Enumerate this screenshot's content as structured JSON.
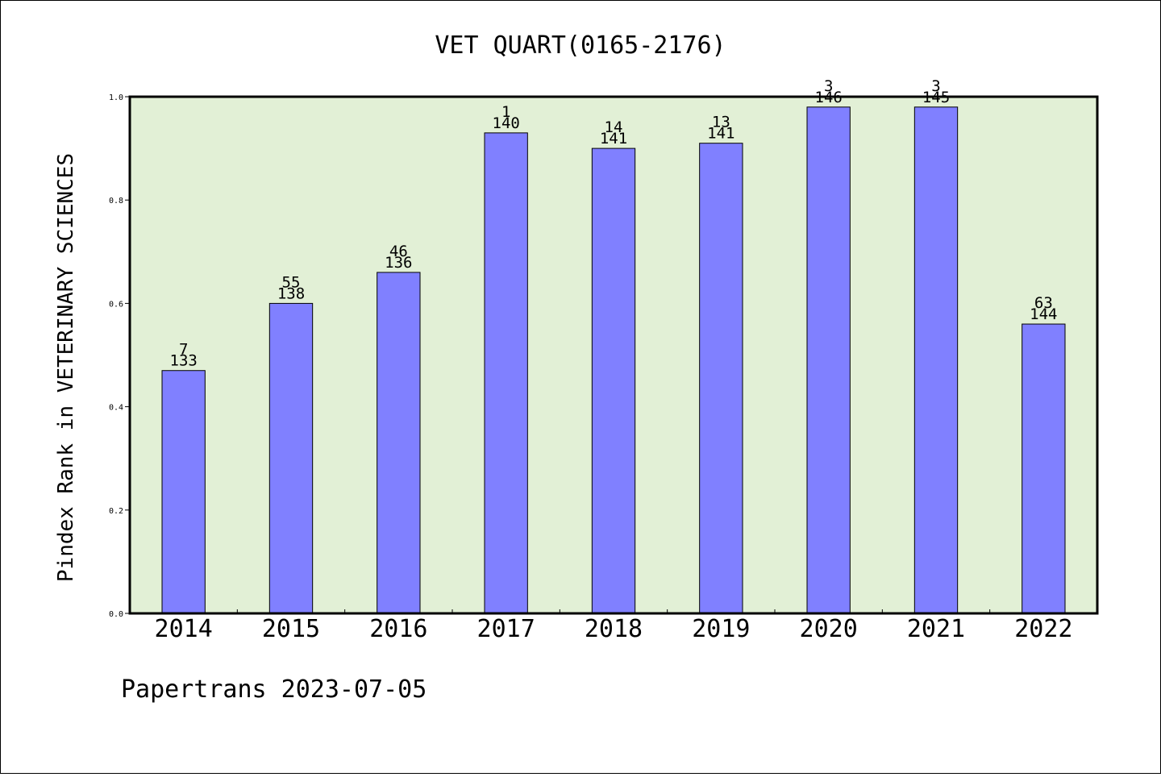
{
  "chart_data": {
    "type": "bar",
    "title": "VET QUART(0165-2176)",
    "xlabel": "",
    "ylabel": "Pindex Rank in VETERINARY SCIENCES",
    "ylim": [
      0,
      1.0
    ],
    "yticks": [
      "0.0",
      "0.2",
      "0.4",
      "0.6",
      "0.8",
      "1.0"
    ],
    "categories": [
      "2014",
      "2015",
      "2016",
      "2017",
      "2018",
      "2019",
      "2020",
      "2021",
      "2022"
    ],
    "values": [
      0.47,
      0.6,
      0.66,
      0.93,
      0.9,
      0.91,
      0.98,
      0.98,
      0.56
    ],
    "rank_labels": [
      "7",
      "55",
      "46",
      "1",
      "14",
      "13",
      "3",
      "3",
      "63"
    ],
    "total_labels": [
      "133",
      "138",
      "136",
      "140",
      "141",
      "141",
      "146",
      "145",
      "144"
    ],
    "grid": false,
    "legend": "none"
  },
  "colors": {
    "plot_background": "#e2f0d6",
    "bar_fill": "#8080ff",
    "bar_stroke": "#000000",
    "axis": "#000000"
  },
  "footer": "Papertrans 2023-07-05"
}
